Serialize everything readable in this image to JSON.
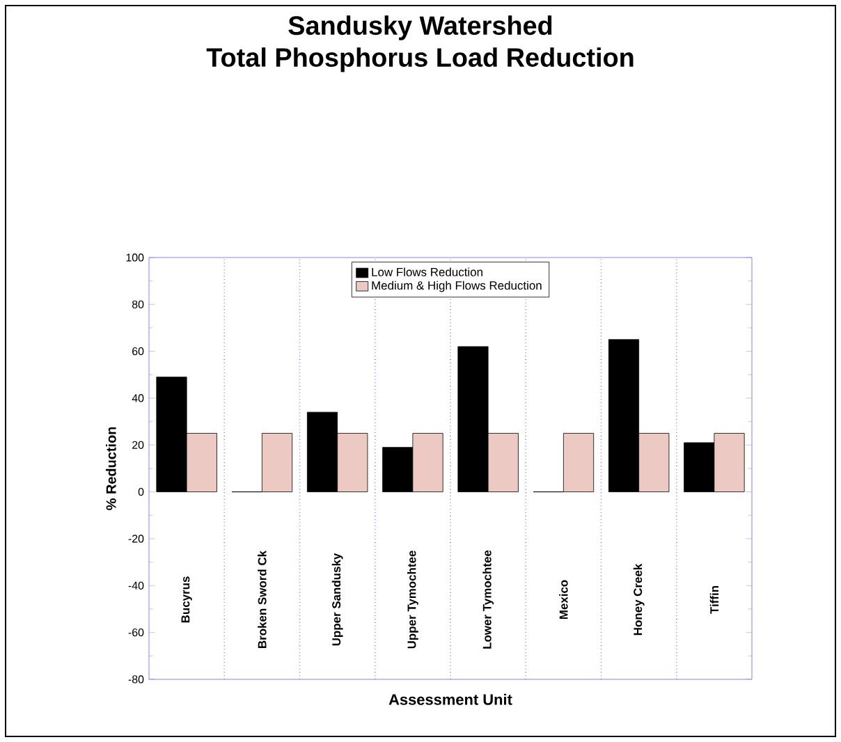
{
  "chart_data": {
    "type": "bar",
    "title": "Sandusky Watershed\nTotal Phosphorus Load Reduction",
    "xlabel": "Assessment Unit",
    "ylabel": "% Reduction",
    "categories": [
      "Bucyrus",
      "Broken Sword Ck",
      "Upper Sandusky",
      "Upper Tymochtee",
      "Lower Tymochtee",
      "Mexico",
      "Honey Creek",
      "Tiffin"
    ],
    "series": [
      {
        "name": "Low Flows Reduction",
        "color": "#000000",
        "values": [
          49,
          0,
          34,
          19,
          62,
          0,
          65,
          21
        ]
      },
      {
        "name": "Medium & High Flows Reduction",
        "color": "#ecc9c2",
        "values": [
          25,
          25,
          25,
          25,
          25,
          25,
          25,
          25
        ]
      }
    ],
    "ylim": [
      -80,
      100
    ],
    "yticks": [
      -80,
      -60,
      -40,
      -20,
      0,
      20,
      40,
      60,
      80,
      100
    ],
    "grid": "x",
    "legend": "top"
  }
}
